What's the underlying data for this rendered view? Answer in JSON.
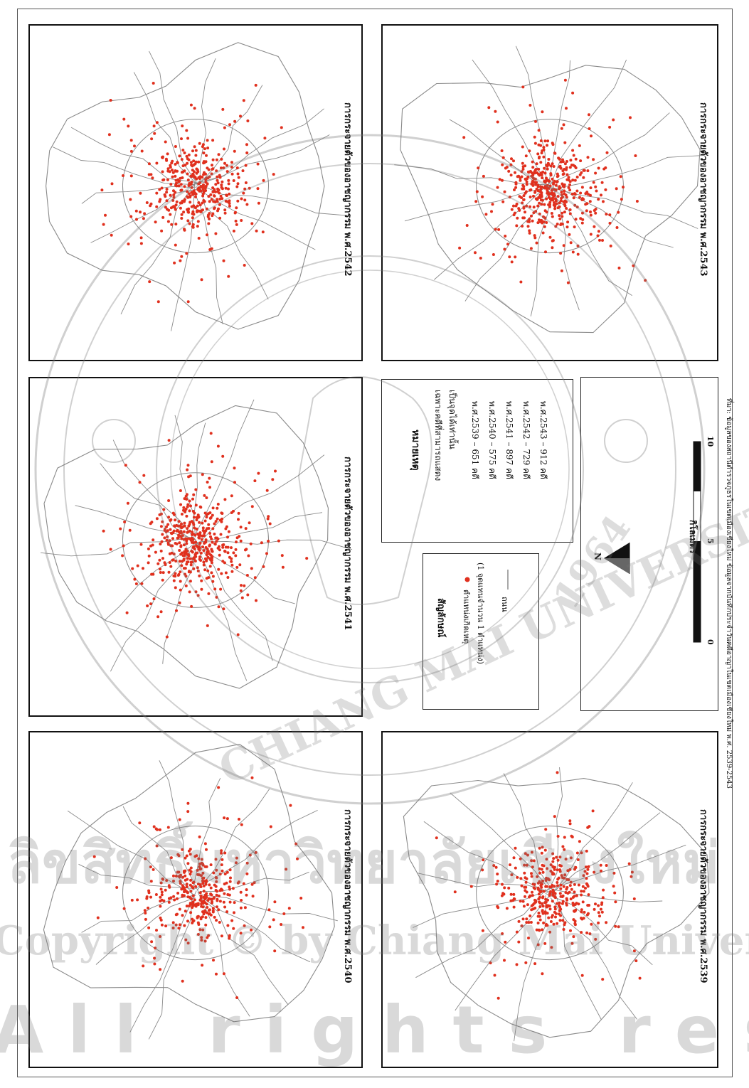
{
  "maps": [
    {
      "id": "2542",
      "title": "การกระจายตัวของอาชญากรรม พ.ศ.2542"
    },
    {
      "id": "2541",
      "title": "การกระจายตัวของอาชญากรรม พ.ศ.2541"
    },
    {
      "id": "2540",
      "title": "การกระจายตัวของอาชญากรรม พ.ศ.2540"
    },
    {
      "id": "2543",
      "title": "การกระจายตัวของอาชญากรรม พ.ศ.2543"
    },
    {
      "id": "2539",
      "title": "การกระจายตัวของอาชญากรรม พ.ศ.2539"
    }
  ],
  "notes": {
    "heading": "หมายเหตุ",
    "line1": "เฉพาะคดีที่สามารถแสดง",
    "line2": "เป็นจุดได้เท่านั้น",
    "years": [
      "พ.ศ.2539 – 651 คดี",
      "พ.ศ.2540 – 575 คดี",
      "พ.ศ.2541 – 897 คดี",
      "พ.ศ.2542 – 729 คดี",
      "พ.ศ.2543 – 912 คดี"
    ]
  },
  "symbols": {
    "heading": "สัญลักษณ์",
    "point_label": "ตำแหน่งเกิดเหตุ",
    "point_sub": "(1 จุดแทนจำนวน 1 ตำแหน่ง)",
    "road_label": "ถนน"
  },
  "scale": {
    "ticks": [
      "0",
      "5",
      "10"
    ],
    "unit": "กิโลเมตร",
    "north": "N"
  },
  "source": "ที่มา: ข้อมูลของสถานีตำรวจภูธรในเขตเมืองเชียงใหม่ ข้อมูลจากบันทึกประจำวันคดีอาญาในเขตเมืองเชียงใหม่ พ.ศ. 2539-2543",
  "watermark": {
    "lines": [
      "ลิขสิทธิ์มหาวิทยาลัยเชียงใหม่",
      "Copyright © by Chiang Mai University",
      "All rights reserved"
    ],
    "seal": [
      "CHIANG MAI UNIVERSITY",
      "1964"
    ]
  },
  "colors": {
    "points": "#e0301e",
    "roads": "#8a8a8a",
    "frame": "#111111"
  }
}
